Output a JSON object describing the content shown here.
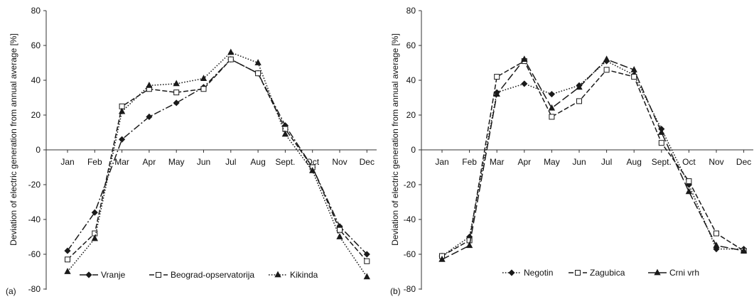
{
  "chart_data": [
    {
      "panel_label": "(a)",
      "type": "line",
      "ylabel": "Deviation of electric generation from annual average [%]",
      "xlabel": "",
      "categories": [
        "Jan",
        "Feb",
        "Mar",
        "Apr",
        "May",
        "Jun",
        "Jul",
        "Aug",
        "Sept.",
        "Oct",
        "Nov",
        "Dec"
      ],
      "ylim": [
        -80,
        80
      ],
      "yticks": [
        -80,
        -60,
        -40,
        -20,
        0,
        20,
        40,
        60,
        80
      ],
      "legend_position": "bottom",
      "series": [
        {
          "name": "Vranje",
          "line_style": "dash-dot",
          "marker": "diamond",
          "color": "#1a1a1a",
          "values": [
            -58,
            -36,
            6,
            19,
            27,
            36,
            52,
            44,
            14,
            -10,
            -44,
            -60
          ]
        },
        {
          "name": "Beograd-opservatorija",
          "line_style": "dashed",
          "marker": "open-square",
          "color": "#1a1a1a",
          "values": [
            -63,
            -48,
            25,
            35,
            33,
            35,
            52,
            44,
            12,
            -10,
            -46,
            -64
          ]
        },
        {
          "name": "Kikinda",
          "line_style": "dotted",
          "marker": "triangle",
          "color": "#1a1a1a",
          "values": [
            -70,
            -51,
            22,
            37,
            38,
            41,
            56,
            50,
            9,
            -12,
            -50,
            -73
          ]
        }
      ]
    },
    {
      "panel_label": "(b)",
      "type": "line",
      "ylabel": "Deviation of electric generation from annual average [%]",
      "xlabel": "",
      "categories": [
        "Jan",
        "Feb",
        "Mar",
        "Apr",
        "May",
        "Jun",
        "Jul",
        "Aug",
        "Sept.",
        "Oct",
        "Nov",
        "Dec"
      ],
      "ylim": [
        -80,
        80
      ],
      "yticks": [
        -80,
        -60,
        -40,
        -20,
        0,
        20,
        40,
        60,
        80
      ],
      "legend_position": "bottom",
      "series": [
        {
          "name": "Negotin",
          "line_style": "dotted",
          "marker": "diamond",
          "color": "#1a1a1a",
          "values": [
            -61,
            -50,
            33,
            38,
            32,
            37,
            51,
            43,
            12,
            -20,
            -57,
            -57
          ]
        },
        {
          "name": "Zagubica",
          "line_style": "dashed",
          "marker": "open-square",
          "color": "#1a1a1a",
          "values": [
            -61,
            -52,
            42,
            51,
            19,
            28,
            46,
            42,
            4,
            -18,
            -48,
            -58
          ]
        },
        {
          "name": "Crni vrh",
          "line_style": "long-dash",
          "marker": "triangle",
          "color": "#1a1a1a",
          "values": [
            -63,
            -55,
            32,
            52,
            24,
            36,
            52,
            46,
            10,
            -24,
            -55,
            -58
          ]
        }
      ]
    }
  ]
}
